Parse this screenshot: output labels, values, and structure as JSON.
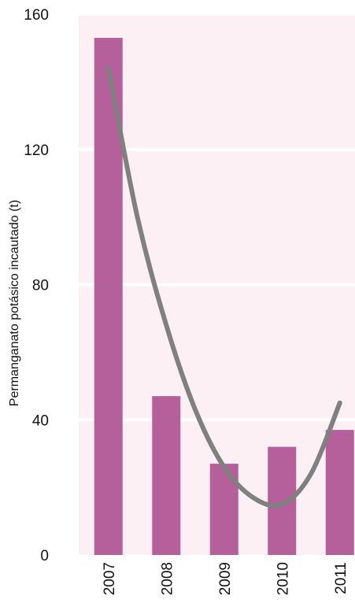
{
  "chart_data": {
    "type": "bar",
    "categories": [
      "2007",
      "2008",
      "2009",
      "2010",
      "2011"
    ],
    "values": [
      153,
      47,
      27,
      32,
      37
    ],
    "trendline": {
      "type": "line",
      "kind": "polynomial",
      "x": [
        2007,
        2007.5,
        2008,
        2008.5,
        2009,
        2009.5,
        2010,
        2010.5,
        2011
      ],
      "y": [
        144,
        100,
        68,
        43,
        26,
        17,
        15,
        24,
        45
      ]
    },
    "ylabel": "Permanganato potásico incautado (t)",
    "xlabel": "",
    "ylim": [
      0,
      160
    ],
    "yticks": [
      0,
      40,
      80,
      120,
      160
    ],
    "grid": true,
    "legend": "none"
  },
  "colors": {
    "bar": "#b5609a",
    "trend": "#808080",
    "plot_bg": "#fdf0f4",
    "grid": "#ffffff"
  }
}
